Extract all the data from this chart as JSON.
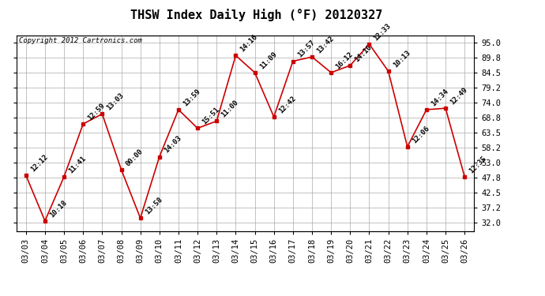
{
  "title": "THSW Index Daily High (°F) 20120327",
  "copyright": "Copyright 2012 Cartronics.com",
  "dates": [
    "03/03",
    "03/04",
    "03/05",
    "03/06",
    "03/07",
    "03/08",
    "03/09",
    "03/10",
    "03/11",
    "03/12",
    "03/13",
    "03/14",
    "03/15",
    "03/16",
    "03/17",
    "03/18",
    "03/19",
    "03/20",
    "03/21",
    "03/22",
    "03/23",
    "03/24",
    "03/25",
    "03/26"
  ],
  "values": [
    48.5,
    32.5,
    48.0,
    66.5,
    70.0,
    50.5,
    33.5,
    55.0,
    71.5,
    65.0,
    67.5,
    90.5,
    84.5,
    69.0,
    88.5,
    90.0,
    84.5,
    87.0,
    94.5,
    85.0,
    58.5,
    71.5,
    72.0,
    48.0
  ],
  "labels": [
    "12:12",
    "10:18",
    "11:41",
    "12:59",
    "13:03",
    "00:00",
    "13:58",
    "14:03",
    "13:59",
    "15:51",
    "11:00",
    "14:16",
    "11:09",
    "12:42",
    "13:57",
    "13:42",
    "16:12",
    "14:10",
    "12:33",
    "10:13",
    "12:06",
    "14:34",
    "12:49",
    "12:35"
  ],
  "yticks": [
    32.0,
    37.2,
    42.5,
    47.8,
    53.0,
    58.2,
    63.5,
    68.8,
    74.0,
    79.2,
    84.5,
    89.8,
    95.0
  ],
  "ylim": [
    29.0,
    97.5
  ],
  "line_color": "#cc0000",
  "marker_color": "#cc0000",
  "bg_color": "#ffffff",
  "grid_color": "#aaaaaa",
  "title_fontsize": 11,
  "label_fontsize": 6.5,
  "tick_fontsize": 7.5,
  "copyright_fontsize": 6.5
}
